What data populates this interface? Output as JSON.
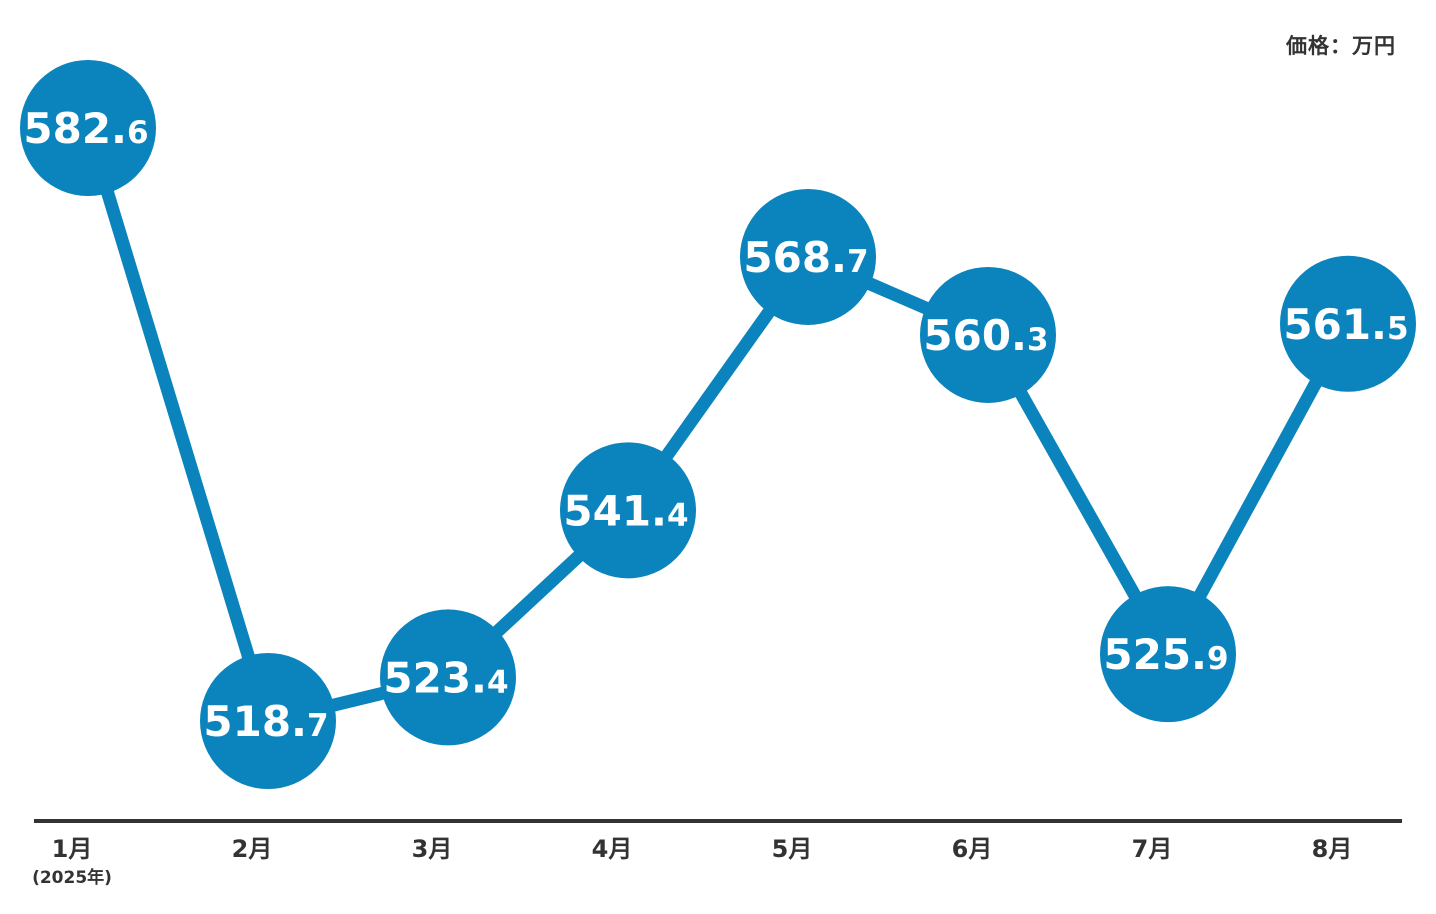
{
  "unit_label": "価格：万円",
  "colors": {
    "series": "#0b84be",
    "axis": "#333333",
    "label": "#ffffff"
  },
  "chart_data": {
    "type": "line",
    "title": "",
    "xlabel": "",
    "ylabel": "価格：万円",
    "categories": [
      "1月",
      "2月",
      "3月",
      "4月",
      "5月",
      "6月",
      "7月",
      "8月"
    ],
    "category_sublabels": [
      "(2025年)",
      "",
      "",
      "",
      "",
      "",
      "",
      ""
    ],
    "values": [
      582.6,
      518.7,
      523.4,
      541.4,
      568.7,
      560.3,
      525.9,
      561.5
    ],
    "value_labels": [
      "582.6",
      "518.7",
      "523.4",
      "541.4",
      "568.7",
      "560.3",
      "525.9",
      "561.5"
    ],
    "ylim": [
      505,
      590
    ],
    "grid": false,
    "data_labels": true
  }
}
